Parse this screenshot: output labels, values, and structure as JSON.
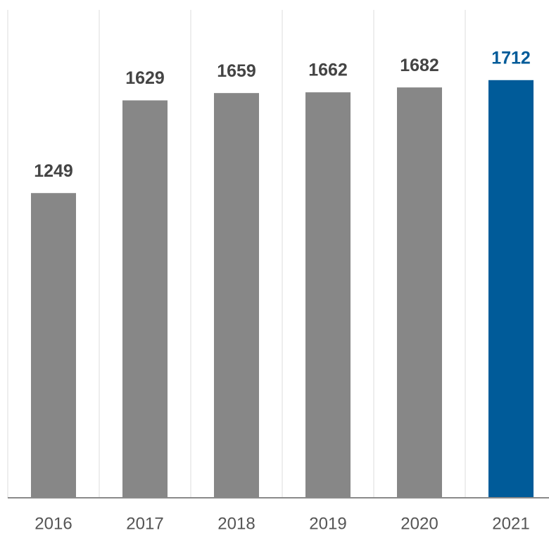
{
  "chart_data": {
    "type": "bar",
    "categories": [
      "2016",
      "2017",
      "2018",
      "2019",
      "2020",
      "2021"
    ],
    "values": [
      1249,
      1629,
      1659,
      1662,
      1682,
      1712
    ],
    "colors": [
      "#878787",
      "#878787",
      "#878787",
      "#878787",
      "#878787",
      "#005b99"
    ],
    "label_colors": [
      "#444444",
      "#444444",
      "#444444",
      "#444444",
      "#444444",
      "#005b99"
    ],
    "ylim": [
      0,
      2000
    ]
  }
}
